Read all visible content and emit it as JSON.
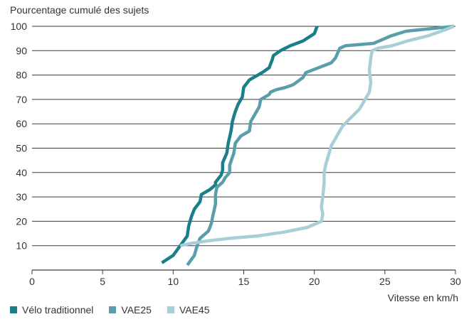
{
  "chart_data": {
    "type": "line",
    "title": "",
    "ylabel": "Pourcentage cumulé des sujets",
    "xlabel": "Vitesse en km/h",
    "xlim": [
      0,
      30
    ],
    "ylim": [
      0,
      100
    ],
    "xticks": [
      0,
      5,
      10,
      15,
      20,
      25,
      30
    ],
    "yticks": [
      10,
      20,
      30,
      40,
      50,
      60,
      70,
      80,
      90,
      100
    ],
    "grid": "horizontal",
    "legend_position": "bottom-left",
    "series": [
      {
        "name": "Vélo traditionnel",
        "color": "#1a7f8a",
        "points": [
          [
            9.2,
            3
          ],
          [
            10.0,
            6
          ],
          [
            10.5,
            10
          ],
          [
            11.0,
            14
          ],
          [
            11.1,
            18
          ],
          [
            11.3,
            22
          ],
          [
            11.5,
            25
          ],
          [
            11.9,
            28
          ],
          [
            12.0,
            31
          ],
          [
            12.6,
            33
          ],
          [
            13.0,
            35
          ],
          [
            13.0,
            36
          ],
          [
            13.4,
            39
          ],
          [
            13.5,
            41
          ],
          [
            13.5,
            44
          ],
          [
            13.8,
            48
          ],
          [
            13.9,
            52
          ],
          [
            14.1,
            57
          ],
          [
            14.2,
            61
          ],
          [
            14.4,
            65
          ],
          [
            14.6,
            68
          ],
          [
            14.9,
            71
          ],
          [
            15.0,
            75
          ],
          [
            15.4,
            78
          ],
          [
            16.3,
            81
          ],
          [
            16.8,
            83
          ],
          [
            17.0,
            86
          ],
          [
            17.1,
            88
          ],
          [
            17.6,
            90
          ],
          [
            18.3,
            92
          ],
          [
            19.2,
            94
          ],
          [
            20.0,
            97
          ],
          [
            20.2,
            100
          ]
        ]
      },
      {
        "name": "VAE25",
        "color": "#5a9eab",
        "points": [
          [
            11.0,
            2
          ],
          [
            11.5,
            6
          ],
          [
            11.7,
            10
          ],
          [
            11.9,
            13
          ],
          [
            12.5,
            16
          ],
          [
            12.7,
            19
          ],
          [
            12.8,
            22
          ],
          [
            13.0,
            27
          ],
          [
            13.0,
            31
          ],
          [
            13.1,
            34
          ],
          [
            13.5,
            36
          ],
          [
            13.7,
            38
          ],
          [
            14.0,
            40
          ],
          [
            14.0,
            43
          ],
          [
            14.3,
            48
          ],
          [
            14.4,
            52
          ],
          [
            14.8,
            55
          ],
          [
            15.4,
            57
          ],
          [
            15.5,
            61
          ],
          [
            15.8,
            64
          ],
          [
            16.1,
            67
          ],
          [
            16.2,
            70
          ],
          [
            16.5,
            71
          ],
          [
            16.8,
            72
          ],
          [
            16.9,
            73
          ],
          [
            17.3,
            74
          ],
          [
            18.0,
            75
          ],
          [
            18.5,
            76
          ],
          [
            19.2,
            79
          ],
          [
            19.4,
            81
          ],
          [
            20.3,
            83
          ],
          [
            21.2,
            85
          ],
          [
            21.5,
            87
          ],
          [
            21.8,
            91
          ],
          [
            22.2,
            92
          ],
          [
            24.2,
            93
          ],
          [
            25.0,
            95
          ],
          [
            25.4,
            96
          ],
          [
            26.5,
            98
          ],
          [
            29.9,
            100
          ]
        ]
      },
      {
        "name": "VAE45",
        "color": "#a7cfd8",
        "points": [
          [
            10.5,
            10
          ],
          [
            11.3,
            11
          ],
          [
            12.5,
            12
          ],
          [
            14.0,
            13
          ],
          [
            16.0,
            14
          ],
          [
            17.8,
            15.5
          ],
          [
            19.5,
            17.5
          ],
          [
            20.5,
            20
          ],
          [
            20.6,
            23
          ],
          [
            20.5,
            26
          ],
          [
            20.6,
            30
          ],
          [
            20.7,
            36
          ],
          [
            20.7,
            40
          ],
          [
            20.8,
            43
          ],
          [
            21.0,
            47
          ],
          [
            21.2,
            51
          ],
          [
            21.6,
            55
          ],
          [
            22.0,
            59
          ],
          [
            22.5,
            62
          ],
          [
            23.2,
            66
          ],
          [
            23.6,
            70
          ],
          [
            23.9,
            73
          ],
          [
            24.0,
            77
          ],
          [
            23.9,
            82
          ],
          [
            24.0,
            87
          ],
          [
            24.1,
            90
          ],
          [
            24.5,
            91
          ],
          [
            25.5,
            92
          ],
          [
            26.6,
            94
          ],
          [
            28.0,
            96
          ],
          [
            29.0,
            98
          ],
          [
            29.9,
            100
          ]
        ]
      }
    ]
  }
}
